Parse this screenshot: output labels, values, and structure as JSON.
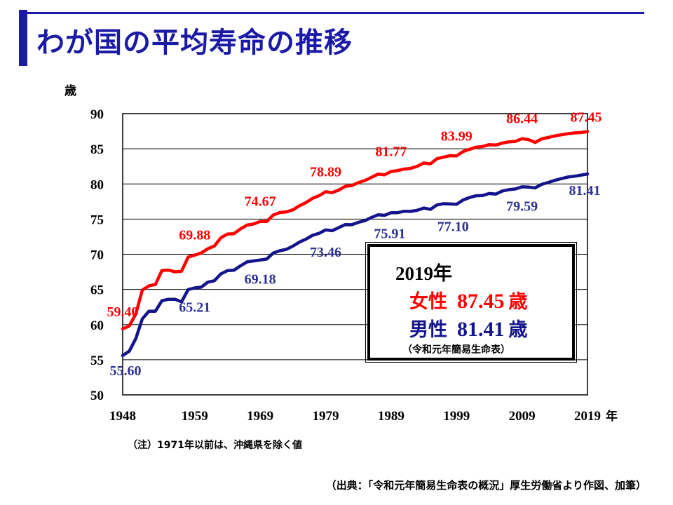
{
  "title": "わが国の平均寿命の推移",
  "chart_data": {
    "type": "line",
    "ylabel": "歳",
    "xlabel": "年",
    "ylim": [
      50,
      90
    ],
    "xlim": [
      1948,
      2019
    ],
    "yticks": [
      "90",
      "85",
      "80",
      "75",
      "70",
      "65",
      "60",
      "55",
      "50"
    ],
    "xticks": [
      "1948",
      "1959",
      "1969",
      "1979",
      "1989",
      "1999",
      "2009",
      "2019"
    ],
    "grid": true,
    "x": [
      1948,
      1949,
      1950,
      1951,
      1952,
      1953,
      1954,
      1955,
      1956,
      1957,
      1958,
      1959,
      1960,
      1961,
      1962,
      1963,
      1964,
      1965,
      1966,
      1967,
      1968,
      1969,
      1970,
      1971,
      1972,
      1973,
      1974,
      1975,
      1976,
      1977,
      1978,
      1979,
      1980,
      1981,
      1982,
      1983,
      1984,
      1985,
      1986,
      1987,
      1988,
      1989,
      1990,
      1991,
      1992,
      1993,
      1994,
      1995,
      1996,
      1997,
      1998,
      1999,
      2000,
      2001,
      2002,
      2003,
      2004,
      2005,
      2006,
      2007,
      2008,
      2009,
      2010,
      2011,
      2012,
      2013,
      2014,
      2015,
      2016,
      2017,
      2018,
      2019
    ],
    "series": [
      {
        "name": "女性",
        "color": "#ff0000",
        "values": [
          59.4,
          59.8,
          61.5,
          64.9,
          65.5,
          65.7,
          67.7,
          67.75,
          67.5,
          67.6,
          69.6,
          69.88,
          70.19,
          70.79,
          71.16,
          72.34,
          72.87,
          72.92,
          73.61,
          74.15,
          74.3,
          74.67,
          74.66,
          75.58,
          75.94,
          76.02,
          76.31,
          76.89,
          77.35,
          77.95,
          78.33,
          78.89,
          78.76,
          79.13,
          79.66,
          79.78,
          80.18,
          80.48,
          80.93,
          81.39,
          81.3,
          81.77,
          81.9,
          82.11,
          82.22,
          82.51,
          82.98,
          82.85,
          83.59,
          83.82,
          84.01,
          83.99,
          84.6,
          84.93,
          85.23,
          85.33,
          85.59,
          85.52,
          85.81,
          85.99,
          86.05,
          86.44,
          86.3,
          85.9,
          86.41,
          86.61,
          86.83,
          86.99,
          87.14,
          87.26,
          87.32,
          87.45
        ]
      },
      {
        "name": "男性",
        "color": "#14148c",
        "values": [
          55.6,
          56.2,
          58.0,
          60.8,
          61.9,
          61.9,
          63.4,
          63.6,
          63.6,
          63.24,
          64.98,
          65.21,
          65.32,
          66.03,
          66.23,
          67.21,
          67.67,
          67.74,
          68.35,
          68.91,
          69.05,
          69.18,
          69.31,
          70.17,
          70.5,
          70.7,
          71.16,
          71.73,
          72.15,
          72.69,
          72.97,
          73.46,
          73.35,
          73.79,
          74.22,
          74.2,
          74.54,
          74.78,
          75.23,
          75.61,
          75.54,
          75.91,
          75.92,
          76.11,
          76.09,
          76.25,
          76.57,
          76.38,
          77.01,
          77.19,
          77.16,
          77.1,
          77.72,
          78.07,
          78.32,
          78.36,
          78.64,
          78.56,
          79.0,
          79.19,
          79.29,
          79.59,
          79.55,
          79.44,
          79.94,
          80.21,
          80.5,
          80.75,
          80.98,
          81.09,
          81.25,
          81.41
        ]
      }
    ],
    "annotations_female": [
      {
        "x": 1948,
        "text": "59.40"
      },
      {
        "x": 1959,
        "text": "69.88"
      },
      {
        "x": 1969,
        "text": "74.67"
      },
      {
        "x": 1979,
        "text": "78.89"
      },
      {
        "x": 1989,
        "text": "81.77"
      },
      {
        "x": 1999,
        "text": "83.99"
      },
      {
        "x": 2009,
        "text": "86.44"
      },
      {
        "x": 2019,
        "text": "87.45"
      }
    ],
    "annotations_male": [
      {
        "x": 1948,
        "text": "55.60"
      },
      {
        "x": 1959,
        "text": "65.21"
      },
      {
        "x": 1969,
        "text": "69.18"
      },
      {
        "x": 1979,
        "text": "73.46"
      },
      {
        "x": 1989,
        "text": "75.91"
      },
      {
        "x": 1999,
        "text": "77.10"
      },
      {
        "x": 2009,
        "text": "79.59"
      },
      {
        "x": 2019,
        "text": "81.41"
      }
    ]
  },
  "infobox": {
    "year": "2019年",
    "female_label": "女性",
    "female_value": "87.45",
    "female_unit": "歳",
    "male_label": "男性",
    "male_value": "81.41",
    "male_unit": "歳",
    "source": "（令和元年簡易生命表）"
  },
  "note": "（注）1971年以前は、沖縄県を除く値",
  "source": "（出典：「令和元年簡易生命表の概況」厚生労働省より作図、加筆）"
}
